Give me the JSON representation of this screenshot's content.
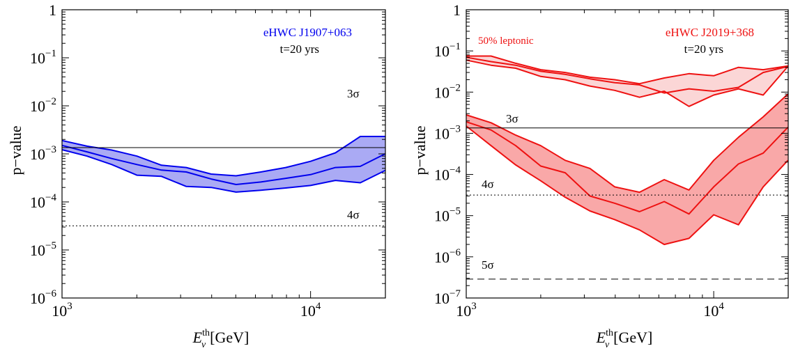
{
  "chart_data": [
    {
      "type": "area",
      "xscale": "log",
      "yscale": "log",
      "xlim": [
        1000,
        20000
      ],
      "ylim": [
        1e-06,
        1
      ],
      "xlabel": {
        "main": "E",
        "sup": "th",
        "sub": "ν",
        "unit": "[GeV]"
      },
      "ylabel": "p−value",
      "x_ticks": [
        {
          "base": "10",
          "exp": "3",
          "v": 1000
        },
        {
          "base": "10",
          "exp": "4",
          "v": 10000
        }
      ],
      "y_ticks": [
        {
          "base": "1",
          "exp": "",
          "v": 1
        },
        {
          "base": "10",
          "exp": "−1",
          "v": 0.1
        },
        {
          "base": "10",
          "exp": "−2",
          "v": 0.01
        },
        {
          "base": "10",
          "exp": "−3",
          "v": 0.001
        },
        {
          "base": "10",
          "exp": "−4",
          "v": 0.0001
        },
        {
          "base": "10",
          "exp": "−5",
          "v": 1e-05
        },
        {
          "base": "10",
          "exp": "−6",
          "v": 1e-06
        }
      ],
      "annotations": [
        {
          "text": "eHWC J1907+063",
          "color": "#0000ee"
        },
        {
          "text": "t=20 yrs",
          "color": "#000000"
        }
      ],
      "thresholds": [
        {
          "label": "3σ",
          "value": 0.00135,
          "style": "solid"
        },
        {
          "label": "4σ",
          "value": 3.17e-05,
          "style": "dotted"
        }
      ],
      "bands": [
        {
          "color": "#0000ee",
          "fill": "#aaaaf4",
          "x": [
            1000,
            1260,
            1585,
            2000,
            2512,
            3162,
            3981,
            5012,
            6310,
            7943,
            10000,
            12589,
            15849,
            19953
          ],
          "upper": [
            0.0019,
            0.00145,
            0.0012,
            0.0009,
            0.00058,
            0.00052,
            0.00038,
            0.00035,
            0.00042,
            0.00052,
            0.0007,
            0.00105,
            0.0023,
            0.0023
          ],
          "middle": [
            0.0015,
            0.0011,
            0.0008,
            0.0006,
            0.00046,
            0.00042,
            0.0003,
            0.00023,
            0.00026,
            0.00031,
            0.00037,
            0.00052,
            0.00055,
            0.001
          ],
          "lower": [
            0.00122,
            0.0009,
            0.0006,
            0.00036,
            0.00034,
            0.00021,
            0.0002,
            0.00016,
            0.000175,
            0.000195,
            0.00022,
            0.00028,
            0.00025,
            0.00045
          ]
        }
      ]
    },
    {
      "type": "area",
      "xscale": "log",
      "yscale": "log",
      "xlim": [
        1000,
        20000
      ],
      "ylim": [
        1e-07,
        1
      ],
      "xlabel": {
        "main": "E",
        "sup": "th",
        "sub": "ν",
        "unit": "[GeV]"
      },
      "ylabel": "p−value",
      "x_ticks": [
        {
          "base": "10",
          "exp": "3",
          "v": 1000
        },
        {
          "base": "10",
          "exp": "4",
          "v": 10000
        }
      ],
      "y_ticks": [
        {
          "base": "1",
          "exp": "",
          "v": 1
        },
        {
          "base": "10",
          "exp": "−1",
          "v": 0.1
        },
        {
          "base": "10",
          "exp": "−2",
          "v": 0.01
        },
        {
          "base": "10",
          "exp": "−3",
          "v": 0.001
        },
        {
          "base": "10",
          "exp": "−4",
          "v": 0.0001
        },
        {
          "base": "10",
          "exp": "−5",
          "v": 1e-05
        },
        {
          "base": "10",
          "exp": "−6",
          "v": 1e-06
        },
        {
          "base": "10",
          "exp": "−7",
          "v": 1e-07
        }
      ],
      "annotations": [
        {
          "text": "50% leptonic",
          "color": "#ee1111"
        },
        {
          "text": "eHWC J2019+368",
          "color": "#ee1111"
        },
        {
          "text": "t=20 yrs",
          "color": "#000000"
        }
      ],
      "thresholds": [
        {
          "label": "3σ",
          "value": 0.00135,
          "style": "solid"
        },
        {
          "label": "4σ",
          "value": 3.17e-05,
          "style": "dotted"
        },
        {
          "label": "5σ",
          "value": 2.87e-07,
          "style": "dashed"
        }
      ],
      "bands": [
        {
          "color": "#ee1111",
          "fill": "#fbd6d6",
          "x": [
            1000,
            1260,
            1585,
            2000,
            2512,
            3162,
            3981,
            5012,
            6310,
            7943,
            10000,
            12589,
            15849,
            19953
          ],
          "upper": [
            0.075,
            0.075,
            0.05,
            0.035,
            0.03,
            0.023,
            0.02,
            0.016,
            0.022,
            0.028,
            0.025,
            0.04,
            0.035,
            0.043
          ],
          "middle": [
            0.07,
            0.055,
            0.045,
            0.032,
            0.027,
            0.021,
            0.017,
            0.015,
            0.0095,
            0.012,
            0.0105,
            0.013,
            0.03,
            0.042
          ],
          "lower": [
            0.06,
            0.045,
            0.038,
            0.024,
            0.02,
            0.014,
            0.011,
            0.0075,
            0.0105,
            0.0045,
            0.0085,
            0.012,
            0.0085,
            0.042
          ]
        },
        {
          "color": "#ee1111",
          "fill": "#f9a8a8",
          "x": [
            1000,
            1260,
            1585,
            2000,
            2512,
            3162,
            3981,
            5012,
            6310,
            7943,
            10000,
            12589,
            15849,
            19953
          ],
          "upper": [
            0.0028,
            0.0018,
            0.0009,
            0.0005,
            0.00022,
            0.00014,
            5e-05,
            3.7e-05,
            7.5e-05,
            4.2e-05,
            0.00022,
            0.0008,
            0.0025,
            0.009
          ],
          "middle": [
            0.0019,
            0.0012,
            0.0005,
            0.00016,
            0.00011,
            3e-05,
            2e-05,
            1.25e-05,
            2.2e-05,
            1.1e-05,
            5e-05,
            0.00018,
            0.00033,
            0.0014
          ],
          "lower": [
            0.0015,
            0.0005,
            0.00017,
            7e-05,
            2.8e-05,
            1.3e-05,
            8e-06,
            4.5e-06,
            2e-06,
            2.8e-06,
            1.05e-05,
            6e-06,
            5e-05,
            0.00022
          ]
        }
      ]
    }
  ]
}
